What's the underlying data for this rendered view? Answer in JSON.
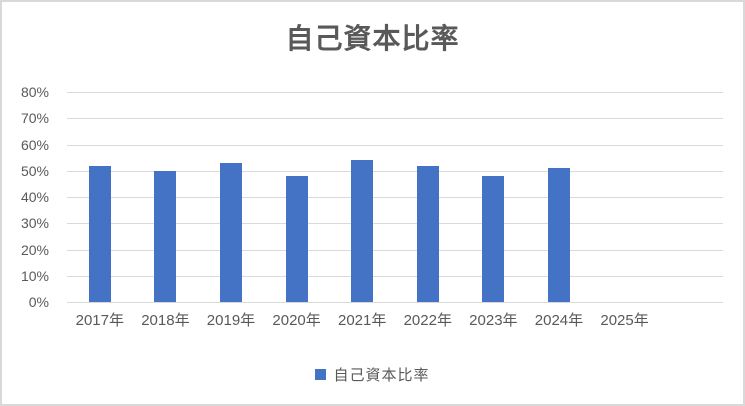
{
  "chart_data": {
    "type": "bar",
    "title": "自己資本比率",
    "series_name": "自己資本比率",
    "categories": [
      "2017年",
      "2018年",
      "2019年",
      "2020年",
      "2021年",
      "2022年",
      "2023年",
      "2024年",
      "2025年",
      ""
    ],
    "values": [
      52,
      50,
      53,
      48,
      54,
      52,
      48,
      51,
      null,
      null
    ],
    "unit": "%",
    "ylim": [
      0,
      80
    ],
    "ytick_interval": 10,
    "ytick_labels": [
      "0%",
      "10%",
      "20%",
      "30%",
      "40%",
      "50%",
      "60%",
      "70%",
      "80%"
    ],
    "grid": true,
    "legend_position": "bottom",
    "colors": {
      "bar": "#4472C4",
      "gridline": "#D9D9D9",
      "axis_line": "#D9D9D9",
      "text": "#595959",
      "title": "#595959",
      "border": "#D9D9D9"
    }
  }
}
